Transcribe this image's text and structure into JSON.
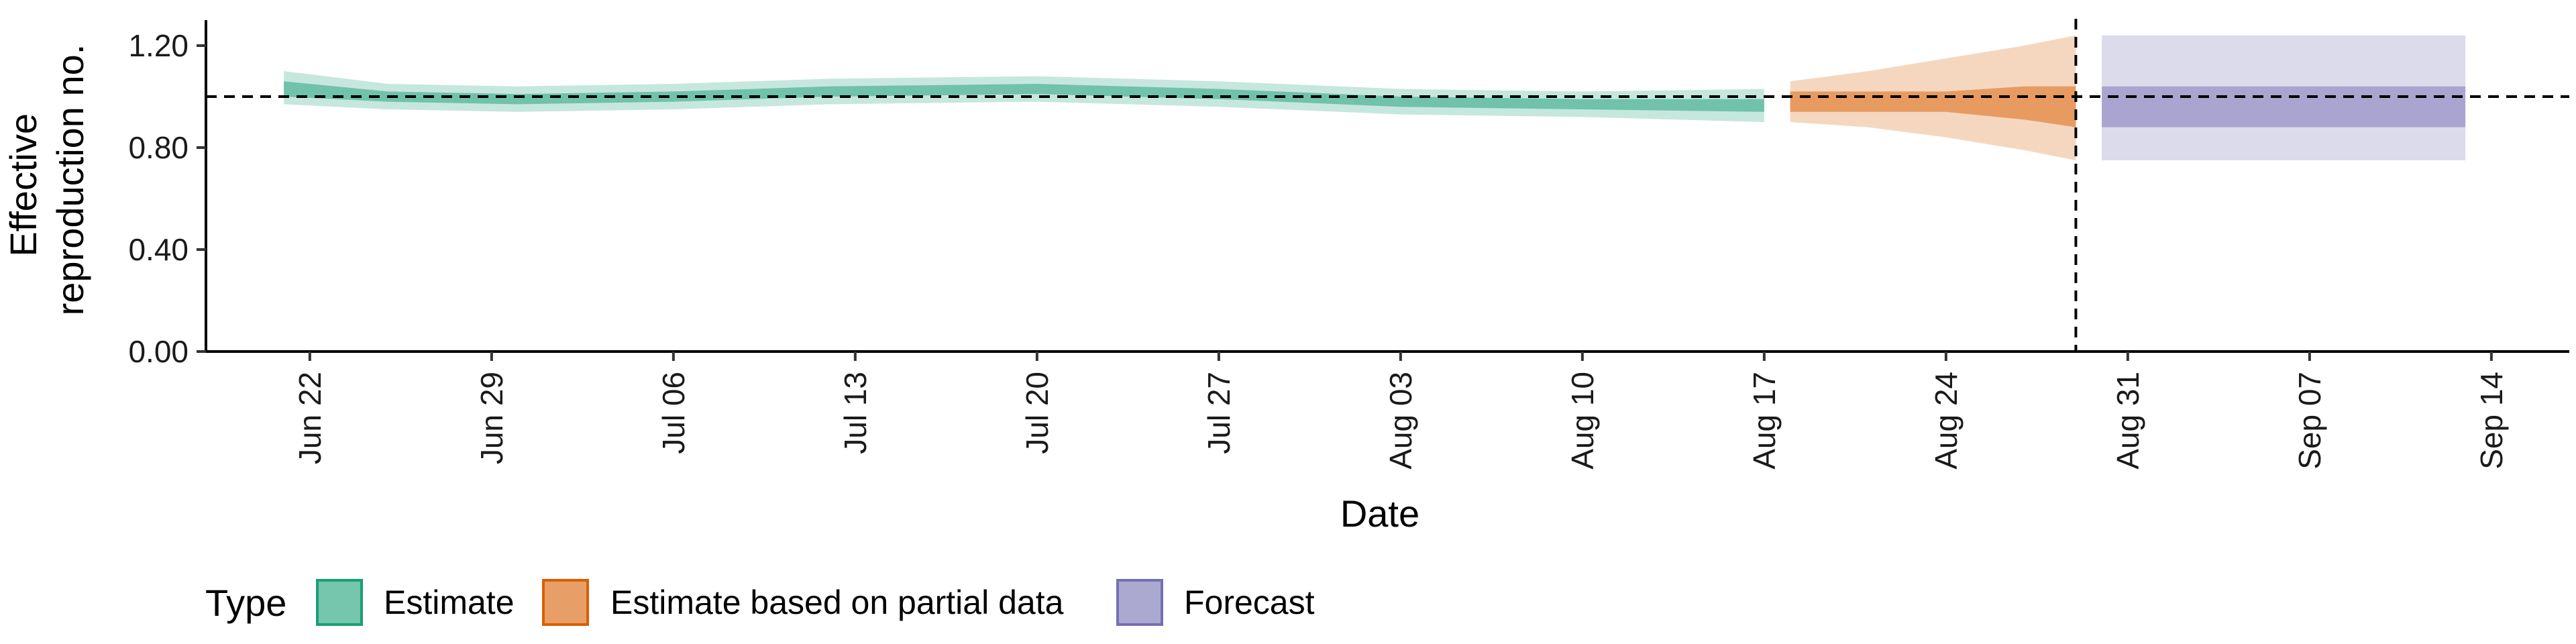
{
  "chart_data": {
    "type": "area",
    "title": "",
    "xlabel": "Date",
    "ylabel_lines": [
      "Effective",
      "reproduction no."
    ],
    "x_range": [
      "2020-06-18",
      "2020-09-17"
    ],
    "ylim": [
      0,
      1.3
    ],
    "y_ticks": [
      0.0,
      0.4,
      0.8,
      1.2
    ],
    "y_tick_labels": [
      "0.00",
      "0.40",
      "0.80",
      "1.20"
    ],
    "x_ticks": [
      "2020-06-22",
      "2020-06-29",
      "2020-07-06",
      "2020-07-13",
      "2020-07-20",
      "2020-07-27",
      "2020-08-03",
      "2020-08-10",
      "2020-08-17",
      "2020-08-24",
      "2020-08-31",
      "2020-09-07",
      "2020-09-14"
    ],
    "x_tick_labels": [
      "Jun 22",
      "Jun 29",
      "Jul 06",
      "Jul 13",
      "Jul 20",
      "Jul 27",
      "Aug 03",
      "Aug 10",
      "Aug 17",
      "Aug 24",
      "Aug 31",
      "Sep 07",
      "Sep 14"
    ],
    "grid": false,
    "legend_position": "bottom-left",
    "reference_hline": 1.0,
    "reference_vline": "2020-08-29",
    "legend": {
      "title": "Type",
      "entries": [
        "Estimate",
        "Estimate based on partial data",
        "Forecast"
      ]
    },
    "series": [
      {
        "name": "Estimate",
        "color": "#1b9e77",
        "points": [
          {
            "x": "2020-06-21",
            "median": 1.03,
            "lo50": 1.0,
            "hi50": 1.06,
            "lo90": 0.97,
            "hi90": 1.1
          },
          {
            "x": "2020-06-25",
            "median": 1.0,
            "lo50": 0.98,
            "hi50": 1.02,
            "lo90": 0.95,
            "hi90": 1.05
          },
          {
            "x": "2020-06-30",
            "median": 0.99,
            "lo50": 0.97,
            "hi50": 1.01,
            "lo90": 0.94,
            "hi90": 1.04
          },
          {
            "x": "2020-07-06",
            "median": 1.0,
            "lo50": 0.98,
            "hi50": 1.02,
            "lo90": 0.95,
            "hi90": 1.05
          },
          {
            "x": "2020-07-12",
            "median": 1.02,
            "lo50": 1.0,
            "hi50": 1.04,
            "lo90": 0.97,
            "hi90": 1.07
          },
          {
            "x": "2020-07-20",
            "median": 1.03,
            "lo50": 1.01,
            "hi50": 1.05,
            "lo90": 0.98,
            "hi90": 1.08
          },
          {
            "x": "2020-07-27",
            "median": 1.01,
            "lo50": 0.99,
            "hi50": 1.03,
            "lo90": 0.96,
            "hi90": 1.06
          },
          {
            "x": "2020-08-03",
            "median": 0.98,
            "lo50": 0.96,
            "hi50": 1.0,
            "lo90": 0.93,
            "hi90": 1.03
          },
          {
            "x": "2020-08-10",
            "median": 0.97,
            "lo50": 0.95,
            "hi50": 0.99,
            "lo90": 0.92,
            "hi90": 1.02
          },
          {
            "x": "2020-08-17",
            "median": 0.97,
            "lo50": 0.94,
            "hi50": 0.99,
            "lo90": 0.9,
            "hi90": 1.03
          }
        ]
      },
      {
        "name": "Estimate based on partial data",
        "color": "#d95f02",
        "points": [
          {
            "x": "2020-08-18",
            "median": 0.98,
            "lo50": 0.94,
            "hi50": 1.02,
            "lo90": 0.9,
            "hi90": 1.06
          },
          {
            "x": "2020-08-21",
            "median": 0.98,
            "lo50": 0.94,
            "hi50": 1.02,
            "lo90": 0.88,
            "hi90": 1.1
          },
          {
            "x": "2020-08-24",
            "median": 0.98,
            "lo50": 0.94,
            "hi50": 1.02,
            "lo90": 0.84,
            "hi90": 1.15
          },
          {
            "x": "2020-08-27",
            "median": 0.97,
            "lo50": 0.91,
            "hi50": 1.04,
            "lo90": 0.79,
            "hi90": 1.2
          },
          {
            "x": "2020-08-29",
            "median": 0.96,
            "lo50": 0.88,
            "hi50": 1.04,
            "lo90": 0.75,
            "hi90": 1.24
          }
        ]
      },
      {
        "name": "Forecast",
        "color": "#7570b3",
        "points": [
          {
            "x": "2020-08-30",
            "median": 0.96,
            "lo50": 0.88,
            "hi50": 1.04,
            "lo90": 0.75,
            "hi90": 1.24
          },
          {
            "x": "2020-09-13",
            "median": 0.96,
            "lo50": 0.88,
            "hi50": 1.04,
            "lo90": 0.75,
            "hi90": 1.24
          }
        ]
      }
    ]
  }
}
